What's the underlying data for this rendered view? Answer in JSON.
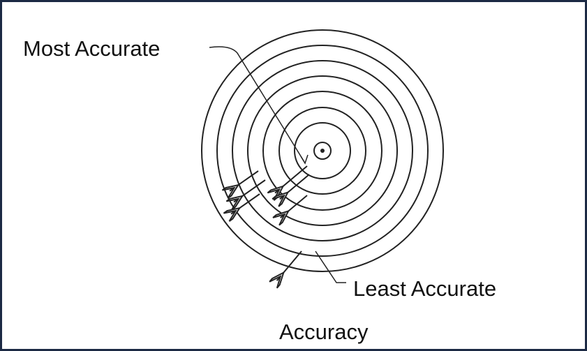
{
  "labels": {
    "most_accurate": "Most Accurate",
    "least_accurate": "Least Accurate",
    "caption": "Accuracy"
  }
}
